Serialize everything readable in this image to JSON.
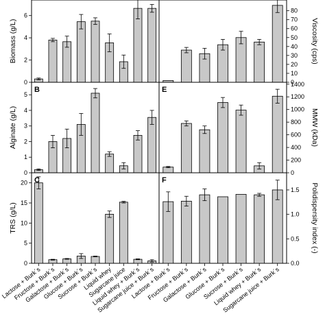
{
  "figure": {
    "colors": {
      "bar_fill": "#c8c8c8",
      "bar_stroke": "#000000",
      "axis": "#000000"
    },
    "left_categories": [
      "Lactose + Burk´s",
      "Fructose + Burk´s",
      "Galactose + Burk´s",
      "Glucose + Burk´s",
      "Sucrose + Burk´s",
      "Liquid whey",
      "Sugarcane juice",
      "Liquid whey + Burk´s",
      "Sugarcane juice + Burk´s"
    ],
    "right_categories": [
      "Lactose + Burk´s",
      "Fructose + Burk´s",
      "Galactose + Burk´s",
      "Glucose + Burk´s",
      "Sucrose + Burk´s",
      "Liquid whey + Burk´s",
      "Sugarcane juice + Burk´s"
    ]
  },
  "chart_data": [
    {
      "type": "bar",
      "panel": "A",
      "panel_label": "",
      "position": "top-left",
      "ylabel": "Biomass (g/L)",
      "ylim": [
        0,
        7.4
      ],
      "yticks": [
        0,
        2,
        4,
        6
      ],
      "categories": [
        "Lactose + Burk´s",
        "Fructose + Burk´s",
        "Galactose + Burk´s",
        "Glucose + Burk´s",
        "Sucrose + Burk´s",
        "Liquid whey",
        "Sugarcane juice",
        "Liquid whey + Burk´s",
        "Sugarcane juice + Burk´s"
      ],
      "values": [
        0.3,
        3.8,
        3.65,
        5.45,
        5.5,
        3.55,
        1.85,
        6.65,
        6.65
      ],
      "errors": [
        0.08,
        0.15,
        0.5,
        0.65,
        0.3,
        0.8,
        0.6,
        0.95,
        0.35
      ]
    },
    {
      "type": "bar",
      "panel": "D",
      "panel_label": "",
      "position": "top-right",
      "ylabel": "Viscosity (cps)",
      "ylim": [
        0,
        92
      ],
      "yticks": [
        0,
        10,
        20,
        30,
        40,
        50,
        60,
        70,
        80
      ],
      "categories": [
        "Lactose + Burk´s",
        "Fructose + Burk´s",
        "Galactose + Burk´s",
        "Glucose + Burk´s",
        "Sucrose + Burk´s",
        "Liquid whey + Burk´s",
        "Sugarcane juice + Burk´s"
      ],
      "values": [
        2,
        36,
        32,
        42,
        50,
        45,
        86
      ],
      "errors": [
        0,
        3,
        6,
        6,
        7,
        3,
        8
      ]
    },
    {
      "type": "bar",
      "panel": "B",
      "panel_label": "B",
      "position": "middle-left",
      "ylabel": "Alginate (g/L)",
      "ylim": [
        0,
        5.8
      ],
      "yticks": [
        0,
        1,
        2,
        3,
        4,
        5
      ],
      "categories": [
        "Lactose + Burk´s",
        "Fructose + Burk´s",
        "Galactose + Burk´s",
        "Glucose + Burk´s",
        "Sucrose + Burk´s",
        "Liquid whey",
        "Sugarcane juice",
        "Liquid whey + Burk´s",
        "Sugarcane juice + Burk´s"
      ],
      "values": [
        0.2,
        2.0,
        2.2,
        3.1,
        5.1,
        1.2,
        0.45,
        2.4,
        3.55
      ],
      "errors": [
        0.05,
        0.4,
        0.6,
        0.7,
        0.3,
        0.15,
        0.2,
        0.3,
        0.45
      ]
    },
    {
      "type": "bar",
      "panel": "E",
      "panel_label": "E",
      "position": "middle-right",
      "ylabel": "MMW (kDa)",
      "ylim": [
        0,
        1430
      ],
      "yticks": [
        0,
        200,
        400,
        600,
        800,
        1000,
        1200,
        1400
      ],
      "categories": [
        "Lactose + Burk´s",
        "Fructose + Burk´s",
        "Galactose + Burk´s",
        "Glucose + Burk´s",
        "Sucrose + Burk´s",
        "Liquid whey + Burk´s",
        "Sugarcane juice + Burk´s"
      ],
      "values": [
        90,
        780,
        680,
        1110,
        990,
        110,
        1210
      ],
      "errors": [
        10,
        40,
        60,
        80,
        80,
        50,
        110
      ]
    },
    {
      "type": "bar",
      "panel": "C",
      "panel_label": "C",
      "position": "bottom-left",
      "ylabel": "TRS (g/L)",
      "ylim": [
        0,
        22.5
      ],
      "yticks": [
        0,
        5,
        10,
        15,
        20
      ],
      "categories": [
        "Lactose + Burk´s",
        "Fructose + Burk´s",
        "Galactose + Burk´s",
        "Glucose + Burk´s",
        "Sucrose + Burk´s",
        "Liquid whey",
        "Sugarcane juice",
        "Liquid whey + Burk´s",
        "Sugarcane juice + Burk´s"
      ],
      "values": [
        20.0,
        0.9,
        1.1,
        1.8,
        1.7,
        12.2,
        15.2,
        1.0,
        0.6
      ],
      "errors": [
        1.5,
        0.1,
        0.1,
        0.6,
        0.1,
        0.8,
        0.2,
        0.1,
        0.3
      ]
    },
    {
      "type": "bar",
      "panel": "F",
      "panel_label": "F",
      "position": "bottom-right",
      "ylabel": "Polidispersity index (-)",
      "ylim": [
        0,
        1.85
      ],
      "yticks": [
        0.0,
        0.5,
        1.0,
        1.5
      ],
      "categories": [
        "Lactose + Burk´s",
        "Fructose + Burk´s",
        "Galactose + Burk´s",
        "Glucose + Burk´s",
        "Sucrose + Burk´s",
        "Liquid whey + Burk´s",
        "Sugarcane juice + Burk´s"
      ],
      "values": [
        1.26,
        1.27,
        1.4,
        1.36,
        1.41,
        1.4,
        1.5
      ],
      "errors": [
        0.2,
        0.1,
        0.12,
        0.0,
        0.0,
        0.03,
        0.2
      ]
    }
  ]
}
